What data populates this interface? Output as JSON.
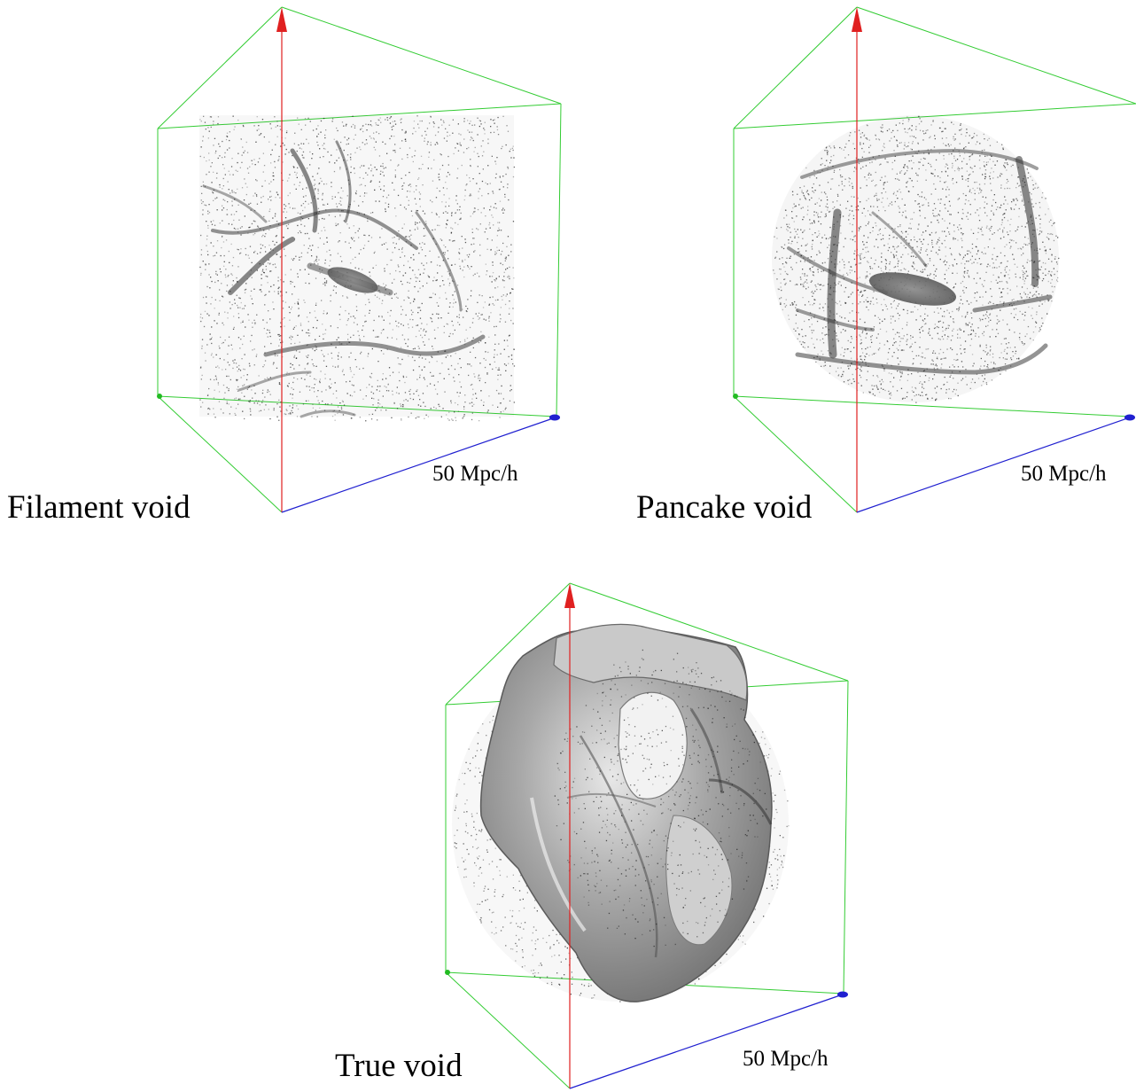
{
  "figure": {
    "panels": [
      {
        "id": "filament",
        "title": "Filament void",
        "scale_label": "50 Mpc/h",
        "content": "particle cloud with filaments"
      },
      {
        "id": "pancake",
        "title": "Pancake void",
        "scale_label": "50 Mpc/h",
        "content": "spherical particle cloud with walls"
      },
      {
        "id": "true",
        "title": "True void",
        "scale_label": "50 Mpc/h",
        "content": "grey iso-density surface with particles"
      }
    ],
    "colors": {
      "background": "#ffffff",
      "box_edges": "#33cc33",
      "vertical_axis": "#e02020",
      "horizontal_axis": "#2020d0",
      "particles": "#1a1a1a",
      "surface": "#9a9a9a"
    },
    "icons": [
      "up-arrow-icon",
      "blue-axis-marker-icon",
      "green-corner-marker-icon"
    ]
  }
}
